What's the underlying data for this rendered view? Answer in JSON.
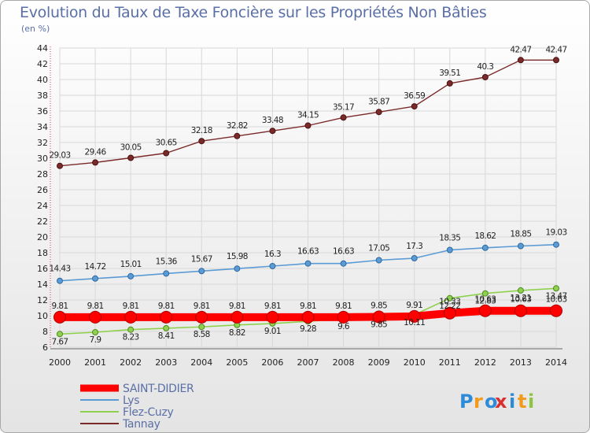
{
  "chart_data": {
    "type": "line",
    "title": "Evolution du Taux de Taxe Foncière sur les Propriétés Non Bâties",
    "subtitle": "(en %)",
    "x": [
      "2000",
      "2001",
      "2002",
      "2003",
      "2004",
      "2005",
      "2006",
      "2007",
      "2008",
      "2009",
      "2010",
      "2011",
      "2012",
      "2013",
      "2014"
    ],
    "ylim": [
      6,
      44
    ],
    "yticks": [
      6,
      8,
      10,
      12,
      14,
      16,
      18,
      20,
      22,
      24,
      26,
      28,
      30,
      32,
      34,
      36,
      38,
      40,
      42,
      44
    ],
    "grid": true,
    "legend_position": "bottom-left",
    "series": [
      {
        "name": "SAINT-DIDIER",
        "color": "#ff0000",
        "values": [
          9.81,
          9.81,
          9.81,
          9.81,
          9.81,
          9.81,
          9.81,
          9.81,
          9.81,
          9.85,
          9.91,
          10.33,
          10.63,
          10.63,
          10.63
        ],
        "labels": [
          "9.81",
          "9.81",
          "9.81",
          "9.81",
          "9.81",
          "9.81",
          "9.81",
          "9.81",
          "9.81",
          "9.85",
          "9.91",
          "10.33",
          "10.63",
          "10.63",
          "10.63"
        ]
      },
      {
        "name": "Lys",
        "color": "#5b9bd5",
        "values": [
          14.43,
          14.72,
          15.01,
          15.36,
          15.67,
          15.98,
          16.3,
          16.63,
          16.63,
          17.05,
          17.3,
          18.35,
          18.62,
          18.85,
          19.03
        ],
        "labels": [
          "14.43",
          "14.72",
          "15.01",
          "15.36",
          "15.67",
          "15.98",
          "16.3",
          "16.63",
          "16.63",
          "17.05",
          "17.3",
          "18.35",
          "18.62",
          "18.85",
          "19.03"
        ]
      },
      {
        "name": "Flez-Cuzy",
        "color": "#8fd14f",
        "values": [
          7.67,
          7.9,
          8.23,
          8.41,
          8.58,
          8.82,
          9.01,
          9.28,
          9.6,
          9.85,
          10.11,
          12.22,
          12.83,
          13.21,
          13.47
        ],
        "labels": [
          "7.67",
          "7.9",
          "8.23",
          "8.41",
          "8.58",
          "8.82",
          "9.01",
          "9.28",
          "9.6",
          "9.85",
          "10.11",
          "12.22",
          "12.83",
          "13.21",
          "13.47"
        ]
      },
      {
        "name": "Tannay",
        "color": "#7b2a2a",
        "values": [
          29.03,
          29.46,
          30.05,
          30.65,
          32.18,
          32.82,
          33.48,
          34.15,
          35.17,
          35.87,
          36.59,
          39.51,
          40.3,
          42.47,
          42.47
        ],
        "labels": [
          "29.03",
          "29.46",
          "30.05",
          "30.65",
          "32.18",
          "32.82",
          "33.48",
          "34.15",
          "35.17",
          "35.87",
          "36.59",
          "39.51",
          "40.3",
          "42.47",
          "42.47"
        ]
      }
    ]
  },
  "logo": {
    "text": "Proxiti",
    "letters": [
      "P",
      "r",
      "o",
      "x",
      "i",
      "t",
      "i"
    ],
    "colors": [
      "#2e8bd8",
      "#f29a1c",
      "#2e8bd8",
      "#d83030",
      "#2e8bd8",
      "#f29a1c",
      "#8cc63f"
    ]
  }
}
